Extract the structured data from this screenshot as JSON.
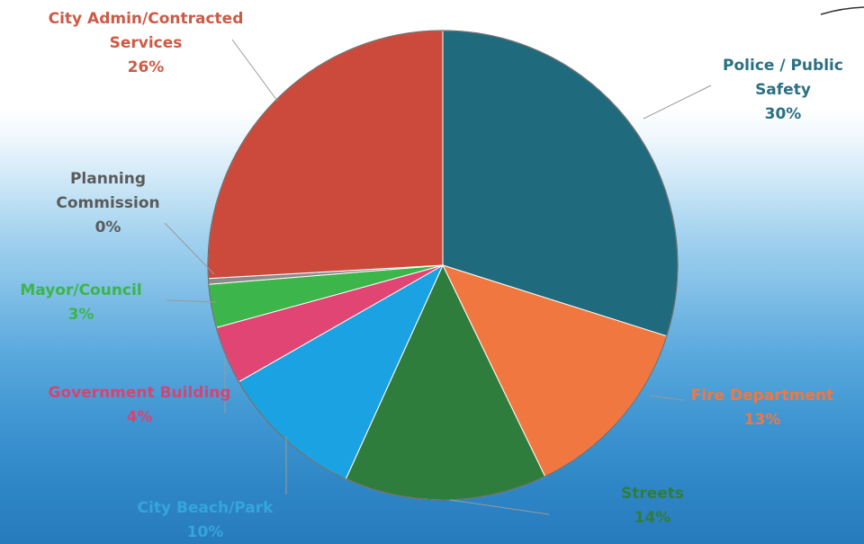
{
  "chart_data": {
    "type": "pie",
    "slices": [
      {
        "label": "Police / Public Safety",
        "percent_label": "30%",
        "value": 30,
        "color": "#1f6a7c"
      },
      {
        "label": "Fire Department",
        "percent_label": "13%",
        "value": 13,
        "color": "#f07840"
      },
      {
        "label": "Streets",
        "percent_label": "14%",
        "value": 14,
        "color": "#2f7d3c"
      },
      {
        "label": "City Beach/Park",
        "percent_label": "10%",
        "value": 10,
        "color": "#1aa2e2"
      },
      {
        "label": "Government Building",
        "percent_label": "4%",
        "value": 4,
        "color": "#e14573"
      },
      {
        "label": "Mayor/Council",
        "percent_label": "3%",
        "value": 3,
        "color": "#3cb54a"
      },
      {
        "label": "Planning Commission",
        "percent_label": "0%",
        "value": 0.4,
        "color": "#8a8a8a"
      },
      {
        "label": "City Admin/Contracted Services",
        "percent_label": "26%",
        "value": 26,
        "color": "#cc4a3c"
      }
    ],
    "label_colors": {
      "Police / Public Safety": "#2a6f84",
      "Fire Department": "#f07840",
      "Streets": "#2f7d3c",
      "City Beach/Park": "#35a5dd",
      "Government Building": "#d64473",
      "Mayor/Council": "#3cb54a",
      "Planning Commission": "#5a5a5a",
      "City Admin/Contracted Services": "#cc5a45"
    }
  }
}
